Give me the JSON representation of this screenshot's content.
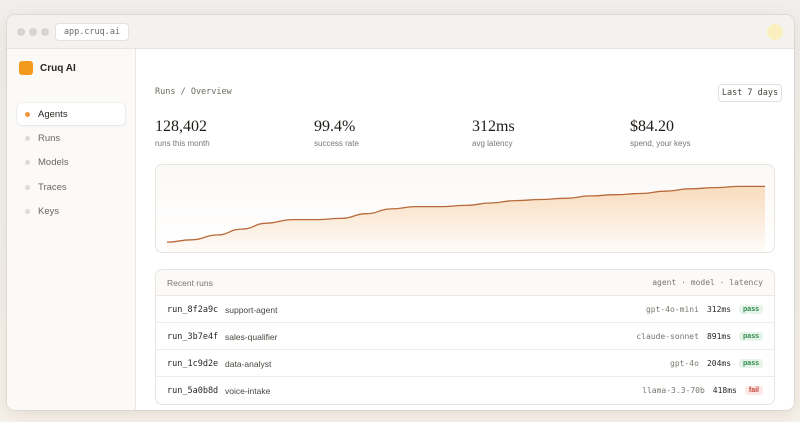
{
  "browser": {
    "address": "app.cruq.ai"
  },
  "brand": {
    "name": "Cruq AI",
    "logo_color": "#f19a1c"
  },
  "sidebar": {
    "items": [
      {
        "label": "Agents",
        "active": true
      },
      {
        "label": "Runs",
        "active": false
      },
      {
        "label": "Models",
        "active": false
      },
      {
        "label": "Traces",
        "active": false
      },
      {
        "label": "Keys",
        "active": false
      }
    ]
  },
  "header": {
    "breadcrumb": "Runs / Overview",
    "range_label": "Last 7 days"
  },
  "stats": [
    {
      "value": "128,402",
      "label": "runs this month"
    },
    {
      "value": "99.4%",
      "label": "success rate"
    },
    {
      "value": "312ms",
      "label": "avg latency"
    },
    {
      "value": "$84.20",
      "label": "spend, your keys"
    }
  ],
  "chart_data": {
    "type": "area",
    "x": [
      0,
      1,
      2,
      3,
      4,
      5,
      6,
      7,
      8,
      9,
      10,
      11,
      12,
      13,
      14,
      15,
      16,
      17,
      18,
      19,
      20,
      21,
      22,
      23,
      24
    ],
    "series": [
      {
        "values": [
          10,
          12,
          16,
          21,
          26,
          29,
          29,
          30,
          34,
          38,
          40,
          40,
          41,
          43,
          45,
          46,
          47,
          49,
          50,
          51,
          53,
          55,
          56,
          57,
          57
        ]
      }
    ],
    "ylim": [
      0,
      70
    ],
    "grid": false,
    "line_color": "#b86a3a",
    "fill_color": "#f6c48e"
  },
  "table": {
    "title": "Recent runs",
    "columns_label": "agent · model · latency",
    "rows": [
      {
        "id": "run_8f2a9c",
        "agent": "support-agent",
        "model": "gpt-4o-mini",
        "latency": "312ms",
        "status": "pass"
      },
      {
        "id": "run_3b7e4f",
        "agent": "sales-qualifier",
        "model": "claude-sonnet",
        "latency": "891ms",
        "status": "pass"
      },
      {
        "id": "run_1c9d2e",
        "agent": "data-analyst",
        "model": "gpt-4o",
        "latency": "204ms",
        "status": "pass"
      },
      {
        "id": "run_5a0b8d",
        "agent": "voice-intake",
        "model": "llama-3.3-70b",
        "latency": "418ms",
        "status": "fail"
      }
    ]
  }
}
